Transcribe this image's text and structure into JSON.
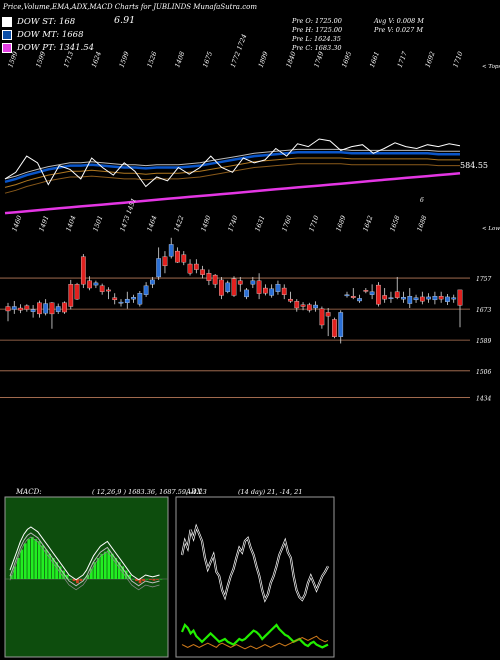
{
  "header": {
    "title": "Price,Volume,EMA,ADX,MACD Charts for JUBLINDS MunafaSutra.com"
  },
  "dow": [
    {
      "label": "DOW ST: 168",
      "color": "#ffffff"
    },
    {
      "label": "DOW MT: 1668",
      "color": "#0b4ea8"
    },
    {
      "label": "DOW PT: 1341.54",
      "color": "#e43fe4"
    }
  ],
  "change_value": "6.91",
  "prev": {
    "open": "Pre   O: 1725.00",
    "high": "Pre   H: 1725.00",
    "low": "Pre   L: 1624.35",
    "close": "Pre   C: 1683.30",
    "avg_vol": "Avg V: 0.008  M",
    "pre_vol": "Pre   V: 0.027 M"
  },
  "top_ticks": [
    "1599",
    "1599",
    "1713",
    "1624",
    "1599",
    "1526",
    "1408",
    "1675",
    "1772 1724",
    "1899",
    "1840",
    "1749",
    "1695",
    "1661",
    "1717",
    "1692",
    "1710"
  ],
  "top_caption": "< Tops",
  "bottom_ticks": [
    "1460",
    "1491",
    "1404",
    "1501",
    "1473 1451",
    "1464",
    "1422",
    "1490",
    "1740",
    "1631",
    "1760",
    "1710",
    "1689",
    "1642",
    "1658",
    "1688"
  ],
  "bottom_caption": "< Lows",
  "ema_value": "584.55",
  "small_mark": "6",
  "price_levels": [
    "1757",
    "1673",
    "1589",
    "1506",
    "1434"
  ],
  "macd": {
    "label": "MACD:",
    "values": "( 12,26,9 ) 1683.36,  1687.59,  -4.23"
  },
  "adx": {
    "label": "ADX",
    "values": "(14  day) 21,  -14,  21"
  },
  "colors": {
    "background": "#000000",
    "ema_blue": "#0a55c8",
    "ema_magenta": "#e436e4",
    "bull": "#2b6fd4",
    "bear": "#e0211f",
    "macd_panel": "#0d4d0d",
    "macd_hist": "#22ee22",
    "adx_green": "#22ee00",
    "adx_orange": "#d07a1a"
  },
  "chart_data": [
    {
      "type": "candlestick",
      "series": "Price",
      "title": "",
      "y_levels": [
        1757,
        1673,
        1589,
        1506,
        1434
      ],
      "candles": [
        {
          "o": 1680,
          "c": 1668,
          "h": 1690,
          "l": 1640
        },
        {
          "o": 1672,
          "c": 1680,
          "h": 1695,
          "l": 1660
        },
        {
          "o": 1676,
          "c": 1670,
          "h": 1686,
          "l": 1662
        },
        {
          "o": 1682,
          "c": 1672,
          "h": 1686,
          "l": 1666
        },
        {
          "o": 1666,
          "c": 1672,
          "h": 1684,
          "l": 1650
        },
        {
          "o": 1690,
          "c": 1660,
          "h": 1696,
          "l": 1650
        },
        {
          "o": 1662,
          "c": 1688,
          "h": 1700,
          "l": 1656
        },
        {
          "o": 1690,
          "c": 1660,
          "h": 1692,
          "l": 1620
        },
        {
          "o": 1666,
          "c": 1680,
          "h": 1688,
          "l": 1660
        },
        {
          "o": 1690,
          "c": 1665,
          "h": 1694,
          "l": 1660
        },
        {
          "o": 1740,
          "c": 1680,
          "h": 1752,
          "l": 1672
        },
        {
          "o": 1740,
          "c": 1700,
          "h": 1744,
          "l": 1698
        },
        {
          "o": 1815,
          "c": 1740,
          "h": 1822,
          "l": 1730
        },
        {
          "o": 1750,
          "c": 1730,
          "h": 1762,
          "l": 1724
        },
        {
          "o": 1738,
          "c": 1744,
          "h": 1750,
          "l": 1730
        },
        {
          "o": 1736,
          "c": 1720,
          "h": 1742,
          "l": 1712
        },
        {
          "o": 1725,
          "c": 1722,
          "h": 1732,
          "l": 1700
        },
        {
          "o": 1704,
          "c": 1698,
          "h": 1716,
          "l": 1686
        },
        {
          "o": 1690,
          "c": 1692,
          "h": 1700,
          "l": 1680
        },
        {
          "o": 1690,
          "c": 1700,
          "h": 1720,
          "l": 1674
        },
        {
          "o": 1700,
          "c": 1705,
          "h": 1712,
          "l": 1690
        },
        {
          "o": 1686,
          "c": 1716,
          "h": 1722,
          "l": 1680
        },
        {
          "o": 1712,
          "c": 1736,
          "h": 1746,
          "l": 1706
        },
        {
          "o": 1740,
          "c": 1752,
          "h": 1760,
          "l": 1730
        },
        {
          "o": 1760,
          "c": 1810,
          "h": 1840,
          "l": 1752
        },
        {
          "o": 1815,
          "c": 1790,
          "h": 1830,
          "l": 1770
        },
        {
          "o": 1816,
          "c": 1848,
          "h": 1866,
          "l": 1810
        },
        {
          "o": 1830,
          "c": 1800,
          "h": 1840,
          "l": 1798
        },
        {
          "o": 1820,
          "c": 1800,
          "h": 1830,
          "l": 1792
        },
        {
          "o": 1795,
          "c": 1770,
          "h": 1808,
          "l": 1764
        },
        {
          "o": 1795,
          "c": 1780,
          "h": 1808,
          "l": 1770
        },
        {
          "o": 1780,
          "c": 1766,
          "h": 1790,
          "l": 1756
        },
        {
          "o": 1770,
          "c": 1750,
          "h": 1780,
          "l": 1738
        },
        {
          "o": 1765,
          "c": 1740,
          "h": 1768,
          "l": 1730
        },
        {
          "o": 1752,
          "c": 1710,
          "h": 1760,
          "l": 1700
        },
        {
          "o": 1720,
          "c": 1744,
          "h": 1750,
          "l": 1716
        },
        {
          "o": 1755,
          "c": 1710,
          "h": 1762,
          "l": 1706
        },
        {
          "o": 1750,
          "c": 1740,
          "h": 1760,
          "l": 1720
        },
        {
          "o": 1706,
          "c": 1725,
          "h": 1730,
          "l": 1700
        },
        {
          "o": 1740,
          "c": 1750,
          "h": 1760,
          "l": 1730
        },
        {
          "o": 1750,
          "c": 1715,
          "h": 1770,
          "l": 1700
        },
        {
          "o": 1730,
          "c": 1716,
          "h": 1740,
          "l": 1710
        },
        {
          "o": 1710,
          "c": 1728,
          "h": 1740,
          "l": 1704
        },
        {
          "o": 1720,
          "c": 1740,
          "h": 1750,
          "l": 1712
        },
        {
          "o": 1730,
          "c": 1712,
          "h": 1740,
          "l": 1700
        },
        {
          "o": 1700,
          "c": 1694,
          "h": 1720,
          "l": 1690
        },
        {
          "o": 1694,
          "c": 1676,
          "h": 1700,
          "l": 1666
        },
        {
          "o": 1685,
          "c": 1680,
          "h": 1692,
          "l": 1670
        },
        {
          "o": 1685,
          "c": 1670,
          "h": 1690,
          "l": 1664
        },
        {
          "o": 1676,
          "c": 1684,
          "h": 1694,
          "l": 1666
        },
        {
          "o": 1674,
          "c": 1630,
          "h": 1680,
          "l": 1620
        },
        {
          "o": 1664,
          "c": 1654,
          "h": 1676,
          "l": 1600
        },
        {
          "o": 1645,
          "c": 1598,
          "h": 1650,
          "l": 1594
        },
        {
          "o": 1598,
          "c": 1664,
          "h": 1670,
          "l": 1580
        },
        {
          "o": 1712,
          "c": 1712,
          "h": 1720,
          "l": 1704
        },
        {
          "o": 1708,
          "c": 1704,
          "h": 1730,
          "l": 1700
        },
        {
          "o": 1695,
          "c": 1702,
          "h": 1712,
          "l": 1690
        },
        {
          "o": 1724,
          "c": 1722,
          "h": 1730,
          "l": 1716
        },
        {
          "o": 1712,
          "c": 1720,
          "h": 1740,
          "l": 1700
        },
        {
          "o": 1738,
          "c": 1686,
          "h": 1746,
          "l": 1680
        },
        {
          "o": 1710,
          "c": 1700,
          "h": 1730,
          "l": 1690
        },
        {
          "o": 1702,
          "c": 1704,
          "h": 1720,
          "l": 1690
        },
        {
          "o": 1720,
          "c": 1704,
          "h": 1760,
          "l": 1700
        },
        {
          "o": 1700,
          "c": 1705,
          "h": 1720,
          "l": 1690
        },
        {
          "o": 1688,
          "c": 1708,
          "h": 1730,
          "l": 1676
        },
        {
          "o": 1698,
          "c": 1704,
          "h": 1712,
          "l": 1690
        },
        {
          "o": 1706,
          "c": 1694,
          "h": 1720,
          "l": 1686
        },
        {
          "o": 1700,
          "c": 1706,
          "h": 1716,
          "l": 1690
        },
        {
          "o": 1698,
          "c": 1708,
          "h": 1720,
          "l": 1686
        },
        {
          "o": 1708,
          "c": 1700,
          "h": 1720,
          "l": 1690
        },
        {
          "o": 1693,
          "c": 1706,
          "h": 1714,
          "l": 1684
        },
        {
          "o": 1700,
          "c": 1704,
          "h": 1712,
          "l": 1690
        },
        {
          "o": 1725,
          "c": 1683,
          "h": 1725,
          "l": 1624
        }
      ]
    },
    {
      "type": "line",
      "series": "EMA",
      "lines": [
        {
          "name": "white",
          "values": [
            0.38,
            0.45,
            0.62,
            0.55,
            0.32,
            0.52,
            0.48,
            0.38,
            0.6,
            0.5,
            0.42,
            0.55,
            0.46,
            0.3,
            0.4,
            0.36,
            0.5,
            0.43,
            0.5,
            0.62,
            0.5,
            0.45,
            0.6,
            0.55,
            0.58,
            0.7,
            0.62,
            0.75,
            0.72,
            0.8,
            0.78,
            0.68,
            0.72,
            0.74,
            0.65,
            0.7,
            0.76,
            0.72,
            0.7,
            0.74,
            0.72,
            0.75,
            0.73
          ]
        },
        {
          "name": "blue",
          "values": [
            0.35,
            0.38,
            0.42,
            0.45,
            0.48,
            0.5,
            0.52,
            0.52,
            0.53,
            0.52,
            0.51,
            0.5,
            0.5,
            0.49,
            0.5,
            0.5,
            0.5,
            0.51,
            0.52,
            0.54,
            0.56,
            0.58,
            0.6,
            0.62,
            0.63,
            0.64,
            0.65,
            0.66,
            0.66,
            0.66,
            0.66,
            0.66,
            0.65,
            0.65,
            0.65,
            0.65,
            0.65,
            0.65,
            0.65,
            0.65,
            0.64,
            0.64,
            0.64
          ]
        },
        {
          "name": "magenta",
          "values": [
            0.02,
            0.03,
            0.04,
            0.05,
            0.06,
            0.07,
            0.08,
            0.09,
            0.1,
            0.11,
            0.12,
            0.13,
            0.14,
            0.15,
            0.16,
            0.17,
            0.18,
            0.19,
            0.2,
            0.21,
            0.22,
            0.23,
            0.24,
            0.25,
            0.26,
            0.27,
            0.28,
            0.29,
            0.3,
            0.31,
            0.32,
            0.33,
            0.34,
            0.35,
            0.36,
            0.37,
            0.38,
            0.39,
            0.4,
            0.41,
            0.42,
            0.43,
            0.44
          ]
        }
      ]
    },
    {
      "type": "bar",
      "series": "MACD histogram",
      "values": [
        0.1,
        0.3,
        0.5,
        0.7,
        0.85,
        0.95,
        1.0,
        0.95,
        0.9,
        0.8,
        0.7,
        0.6,
        0.5,
        0.4,
        0.3,
        0.2,
        0.1,
        0,
        -0.05,
        -0.1,
        -0.05,
        0,
        0.1,
        0.25,
        0.4,
        0.5,
        0.6,
        0.65,
        0.7,
        0.6,
        0.5,
        0.4,
        0.3,
        0.2,
        0.1,
        0,
        -0.05,
        -0.1,
        -0.05,
        0,
        -0.02,
        -0.04,
        -0.02,
        0
      ]
    },
    {
      "type": "line",
      "series": "ADX",
      "lines": [
        {
          "name": "white",
          "values": [
            0.7,
            0.8,
            0.75,
            0.88,
            0.82,
            0.9,
            0.85,
            0.8,
            0.68,
            0.6,
            0.65,
            0.7,
            0.58,
            0.55,
            0.45,
            0.4,
            0.48,
            0.55,
            0.6,
            0.68,
            0.75,
            0.72,
            0.8,
            0.82,
            0.75,
            0.7,
            0.62,
            0.55,
            0.45,
            0.38,
            0.42,
            0.5,
            0.55,
            0.62,
            0.7,
            0.75,
            0.8,
            0.72,
            0.68,
            0.55,
            0.45,
            0.4,
            0.38,
            0.42,
            0.5,
            0.55,
            0.5,
            0.45,
            0.5,
            0.55,
            0.58,
            0.62
          ]
        },
        {
          "name": "green",
          "values": [
            0.15,
            0.2,
            0.18,
            0.14,
            0.16,
            0.12,
            0.1,
            0.08,
            0.1,
            0.12,
            0.14,
            0.12,
            0.1,
            0.08,
            0.09,
            0.1,
            0.08,
            0.07,
            0.06,
            0.08,
            0.1,
            0.09,
            0.1,
            0.12,
            0.14,
            0.16,
            0.15,
            0.13,
            0.1,
            0.12,
            0.14,
            0.16,
            0.18,
            0.2,
            0.17,
            0.15,
            0.13,
            0.12,
            0.1,
            0.08,
            0.09,
            0.1,
            0.08,
            0.06,
            0.05,
            0.07,
            0.08,
            0.06,
            0.05,
            0.04,
            0.05,
            0.06
          ]
        },
        {
          "name": "orange",
          "values": [
            0.06,
            0.05,
            0.04,
            0.05,
            0.06,
            0.05,
            0.04,
            0.05,
            0.06,
            0.07,
            0.06,
            0.05,
            0.04,
            0.06,
            0.07,
            0.06,
            0.05,
            0.04,
            0.05,
            0.06,
            0.05,
            0.04,
            0.03,
            0.04,
            0.05,
            0.04,
            0.03,
            0.04,
            0.05,
            0.06,
            0.05,
            0.04,
            0.05,
            0.06,
            0.07,
            0.06,
            0.05,
            0.06,
            0.07,
            0.08,
            0.09,
            0.1,
            0.11,
            0.1,
            0.09,
            0.1,
            0.11,
            0.12,
            0.1,
            0.09,
            0.08,
            0.09
          ]
        }
      ]
    }
  ]
}
